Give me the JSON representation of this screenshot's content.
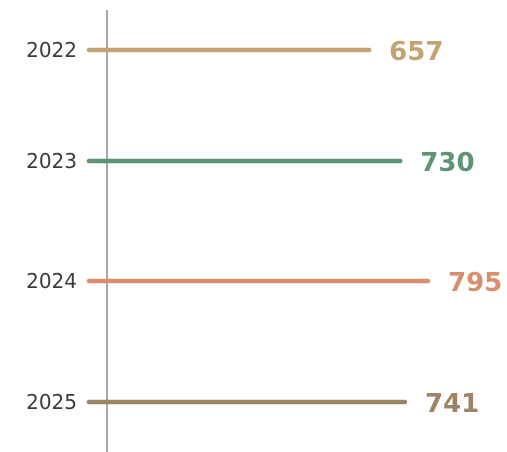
{
  "chart_data": {
    "type": "bar",
    "orientation": "horizontal",
    "categories": [
      "2022",
      "2023",
      "2024",
      "2025"
    ],
    "values": [
      657,
      730,
      795,
      741
    ],
    "colors": [
      "#c2a472",
      "#5e9476",
      "#d88f6c",
      "#9c8467"
    ],
    "title": "",
    "xlabel": "",
    "ylabel": "",
    "grid": false,
    "legend": "none"
  }
}
